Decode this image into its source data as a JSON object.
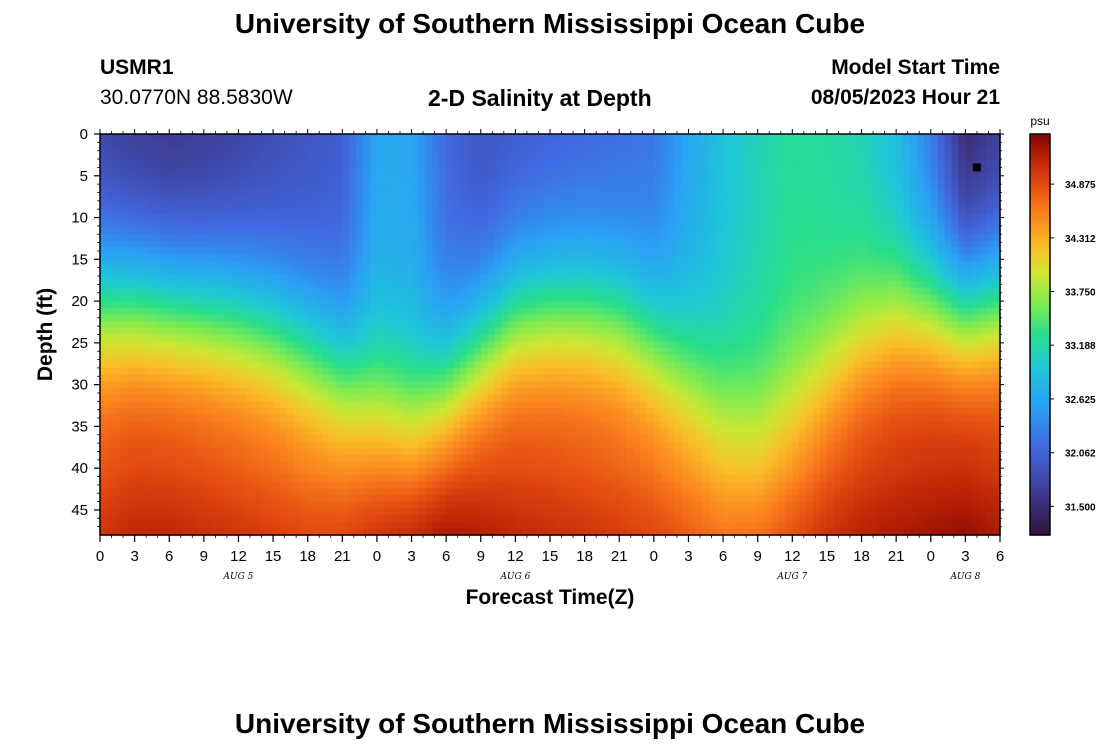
{
  "page_title": "University of Southern Mississippi Ocean Cube",
  "footer_title": "University of Southern Mississippi Ocean Cube",
  "station": {
    "id": "USMR1",
    "coordinates": "30.0770N  88.5830W"
  },
  "subtitle": "2-D Salinity at Depth",
  "model_start": {
    "label": "Model Start Time",
    "value": "08/05/2023 Hour 21"
  },
  "chart_data": {
    "type": "heatmap",
    "title": "2-D Salinity at Depth",
    "xlabel": "Forecast Time(Z)",
    "ylabel": "Depth (ft)",
    "x_range_hours": [
      0,
      78
    ],
    "y_range_ft": [
      0,
      48
    ],
    "x_ticks": [
      "0",
      "3",
      "6",
      "9",
      "12",
      "15",
      "18",
      "21",
      "0",
      "3",
      "6",
      "9",
      "12",
      "15",
      "18",
      "21",
      "0",
      "3",
      "6",
      "9",
      "12",
      "15",
      "18",
      "21",
      "0",
      "3",
      "6"
    ],
    "y_ticks": [
      0,
      5,
      10,
      15,
      20,
      25,
      30,
      35,
      40,
      45
    ],
    "day_labels": [
      {
        "label": "AUG 5",
        "hour": 12
      },
      {
        "label": "AUG 6",
        "hour": 36
      },
      {
        "label": "AUG 7",
        "hour": 60
      },
      {
        "label": "AUG 8",
        "hour": 75
      }
    ],
    "colorbar": {
      "unit": "psu",
      "min": 31.2,
      "max": 35.4,
      "ticks": [
        31.5,
        32.062,
        32.625,
        33.188,
        33.75,
        34.312,
        34.875
      ],
      "tick_labels": [
        "31.500",
        "32.062",
        "32.625",
        "33.188",
        "33.750",
        "34.312",
        "34.875"
      ]
    },
    "profile": {
      "hours": [
        0,
        3,
        6,
        9,
        12,
        15,
        18,
        21,
        24,
        27,
        30,
        33,
        36,
        39,
        42,
        45,
        48,
        51,
        54,
        57,
        60,
        63,
        66,
        69,
        72,
        75,
        78
      ],
      "surface_psu": [
        31.7,
        31.6,
        31.55,
        31.6,
        31.7,
        31.8,
        31.9,
        32.0,
        32.6,
        32.6,
        32.1,
        31.9,
        31.95,
        32.0,
        32.05,
        32.1,
        32.2,
        32.6,
        32.9,
        33.1,
        33.25,
        33.2,
        33.1,
        32.8,
        32.2,
        31.4,
        31.6
      ],
      "thermocline_ft": [
        20,
        20,
        20.5,
        21,
        22,
        23.5,
        26,
        29,
        32,
        34,
        31,
        26,
        22,
        21,
        21,
        22,
        25,
        29,
        33,
        35,
        33,
        29,
        25,
        22,
        21,
        21,
        20
      ],
      "bottom_psu": [
        34.9,
        35.0,
        35.0,
        34.95,
        34.9,
        34.85,
        34.8,
        34.85,
        35.0,
        35.15,
        35.25,
        35.1,
        35.0,
        34.95,
        34.9,
        34.85,
        34.8,
        34.7,
        34.6,
        34.65,
        34.8,
        34.95,
        35.05,
        35.1,
        35.15,
        35.2,
        35.1
      ]
    },
    "marker": {
      "hour": 76,
      "depth_ft": 4
    }
  }
}
